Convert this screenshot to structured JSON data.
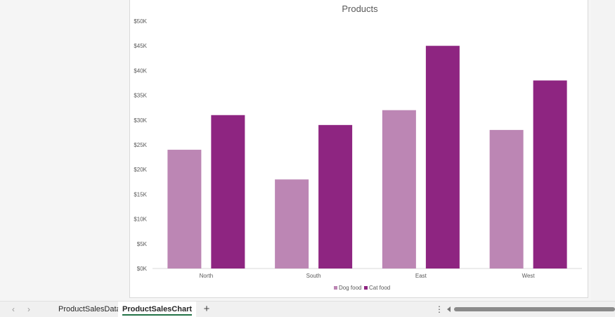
{
  "chart_data": {
    "type": "bar",
    "title": "Products",
    "categories": [
      "North",
      "South",
      "East",
      "West"
    ],
    "series": [
      {
        "name": "Dog food",
        "values": [
          24000,
          18000,
          32000,
          28000
        ],
        "color": "#bc86b4"
      },
      {
        "name": "Cat food",
        "values": [
          31000,
          29000,
          45000,
          38000
        ],
        "color": "#8e2581"
      }
    ],
    "ylim": [
      0,
      50000
    ],
    "yticks": [
      "$0K",
      "$5K",
      "$10K",
      "$15K",
      "$20K",
      "$25K",
      "$30K",
      "$35K",
      "$40K",
      "$45K",
      "$50K"
    ],
    "grid": false,
    "legend_position": "bottom"
  },
  "tabs": {
    "prev_icon": "chevron-left-icon",
    "next_icon": "chevron-right-icon",
    "sheets": [
      "ProductSalesData",
      "ProductSalesChart"
    ],
    "active_sheet": "ProductSalesChart",
    "add_label": "+",
    "more_label": "⋮"
  }
}
